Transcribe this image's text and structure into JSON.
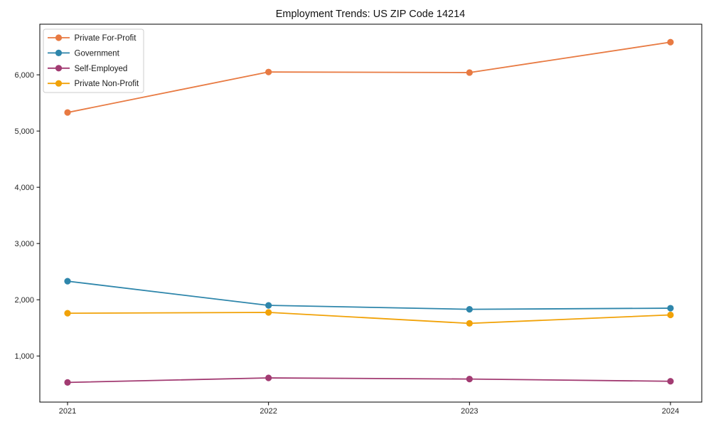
{
  "figure": {
    "title": "Employment Trends: US ZIP Code 14214"
  },
  "colors": {
    "axis": "#000000",
    "tick_label": "#262626",
    "title_text": "#111111",
    "legend_border": "#cccccc",
    "legend_bg": "#ffffff"
  },
  "chart_data": {
    "type": "line",
    "title": "Employment Trends: US ZIP Code 14214",
    "x": [
      "2021",
      "2022",
      "2023",
      "2024"
    ],
    "series": [
      {
        "name": "Private For-Profit",
        "color": "#E87A42",
        "values": [
          5330,
          6050,
          6040,
          6580
        ]
      },
      {
        "name": "Government",
        "color": "#2E86AB",
        "values": [
          2330,
          1900,
          1830,
          1850
        ]
      },
      {
        "name": "Self-Employed",
        "color": "#A23B72",
        "values": [
          530,
          610,
          590,
          550
        ]
      },
      {
        "name": "Private Non-Profit",
        "color": "#F1A208",
        "values": [
          1760,
          1775,
          1580,
          1730
        ]
      }
    ],
    "xlabel": "",
    "ylabel": "",
    "ylim": [
      180,
      6900
    ],
    "yticks": [
      {
        "value": 1000,
        "label": "1,000"
      },
      {
        "value": 2000,
        "label": "2,000"
      },
      {
        "value": 3000,
        "label": "3,000"
      },
      {
        "value": 4000,
        "label": "4,000"
      },
      {
        "value": 5000,
        "label": "5,000"
      },
      {
        "value": 6000,
        "label": "6,000"
      }
    ],
    "grid": false,
    "legend_position": "upper left",
    "marker": "circle",
    "line_width": 1.8,
    "marker_radius": 4.6
  }
}
